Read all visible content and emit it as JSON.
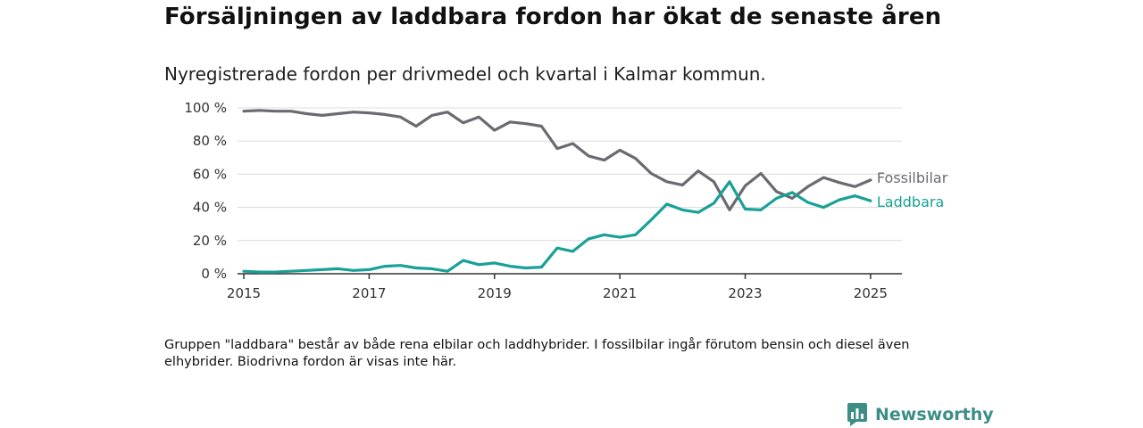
{
  "title": "Försäljningen av laddbara fordon har ökat de senaste åren",
  "subtitle": "Nyregistrerade fordon per drivmedel och kvartal i Kalmar kommun.",
  "note": "Gruppen \"laddbara\" består av både rena elbilar och laddhybrider. I fossilbilar ingår förutom bensin och diesel även elhybrider. Biodrivna fordon är visas inte här.",
  "brand": {
    "name": "Newsworthy",
    "icon": "newsworthy-logo-icon"
  },
  "chart_data": {
    "type": "line",
    "title": "",
    "xlabel": "",
    "ylabel": "",
    "xlim": [
      2014.9,
      2025.5
    ],
    "ylim": [
      0,
      100
    ],
    "grid": true,
    "y_ticks": [
      0,
      20,
      40,
      60,
      80,
      100
    ],
    "y_tick_labels": [
      "0 %",
      "20 %",
      "40 %",
      "60 %",
      "80 %",
      "100 %"
    ],
    "x_ticks": [
      2015,
      2017,
      2019,
      2021,
      2023,
      2025
    ],
    "x_tick_labels": [
      "2015",
      "2017",
      "2019",
      "2021",
      "2023",
      "2025"
    ],
    "legend": "direct labels at line ends",
    "x": [
      2015.0,
      2015.25,
      2015.5,
      2015.75,
      2016.0,
      2016.25,
      2016.5,
      2016.75,
      2017.0,
      2017.25,
      2017.5,
      2017.75,
      2018.0,
      2018.25,
      2018.5,
      2018.75,
      2019.0,
      2019.25,
      2019.5,
      2019.75,
      2020.0,
      2020.25,
      2020.5,
      2020.75,
      2021.0,
      2021.25,
      2021.5,
      2021.75,
      2022.0,
      2022.25,
      2022.5,
      2022.75,
      2023.0,
      2023.25,
      2023.5,
      2023.75,
      2024.0,
      2024.25,
      2024.5,
      2024.75,
      2025.0
    ],
    "series": [
      {
        "name": "Fossilbilar",
        "color": "#6b6a70",
        "values": [
          98,
          98.5,
          98,
          98,
          96.5,
          95.5,
          96.5,
          97.5,
          97,
          96,
          94.5,
          89,
          95.5,
          97.5,
          91,
          94.5,
          86.5,
          91.5,
          90.5,
          89,
          75.5,
          78.5,
          71,
          68.5,
          74.5,
          69.5,
          60.5,
          55.5,
          53.5,
          62,
          55.5,
          38.5,
          53,
          60.5,
          49.5,
          45.5,
          52.5,
          58,
          55,
          52.5,
          56.5
        ]
      },
      {
        "name": "Laddbara",
        "color": "#19a097",
        "values": [
          1.5,
          1,
          1,
          1.5,
          2,
          2.5,
          3,
          2,
          2.5,
          4.5,
          5,
          3.5,
          3,
          1.5,
          8,
          5.5,
          6.5,
          4.5,
          3.5,
          4,
          15.5,
          13.5,
          21,
          23.5,
          22,
          23.5,
          32.5,
          42,
          38.5,
          37,
          42.5,
          55.5,
          39,
          38.5,
          45.5,
          49,
          43,
          40,
          44.5,
          47,
          44
        ]
      }
    ]
  }
}
